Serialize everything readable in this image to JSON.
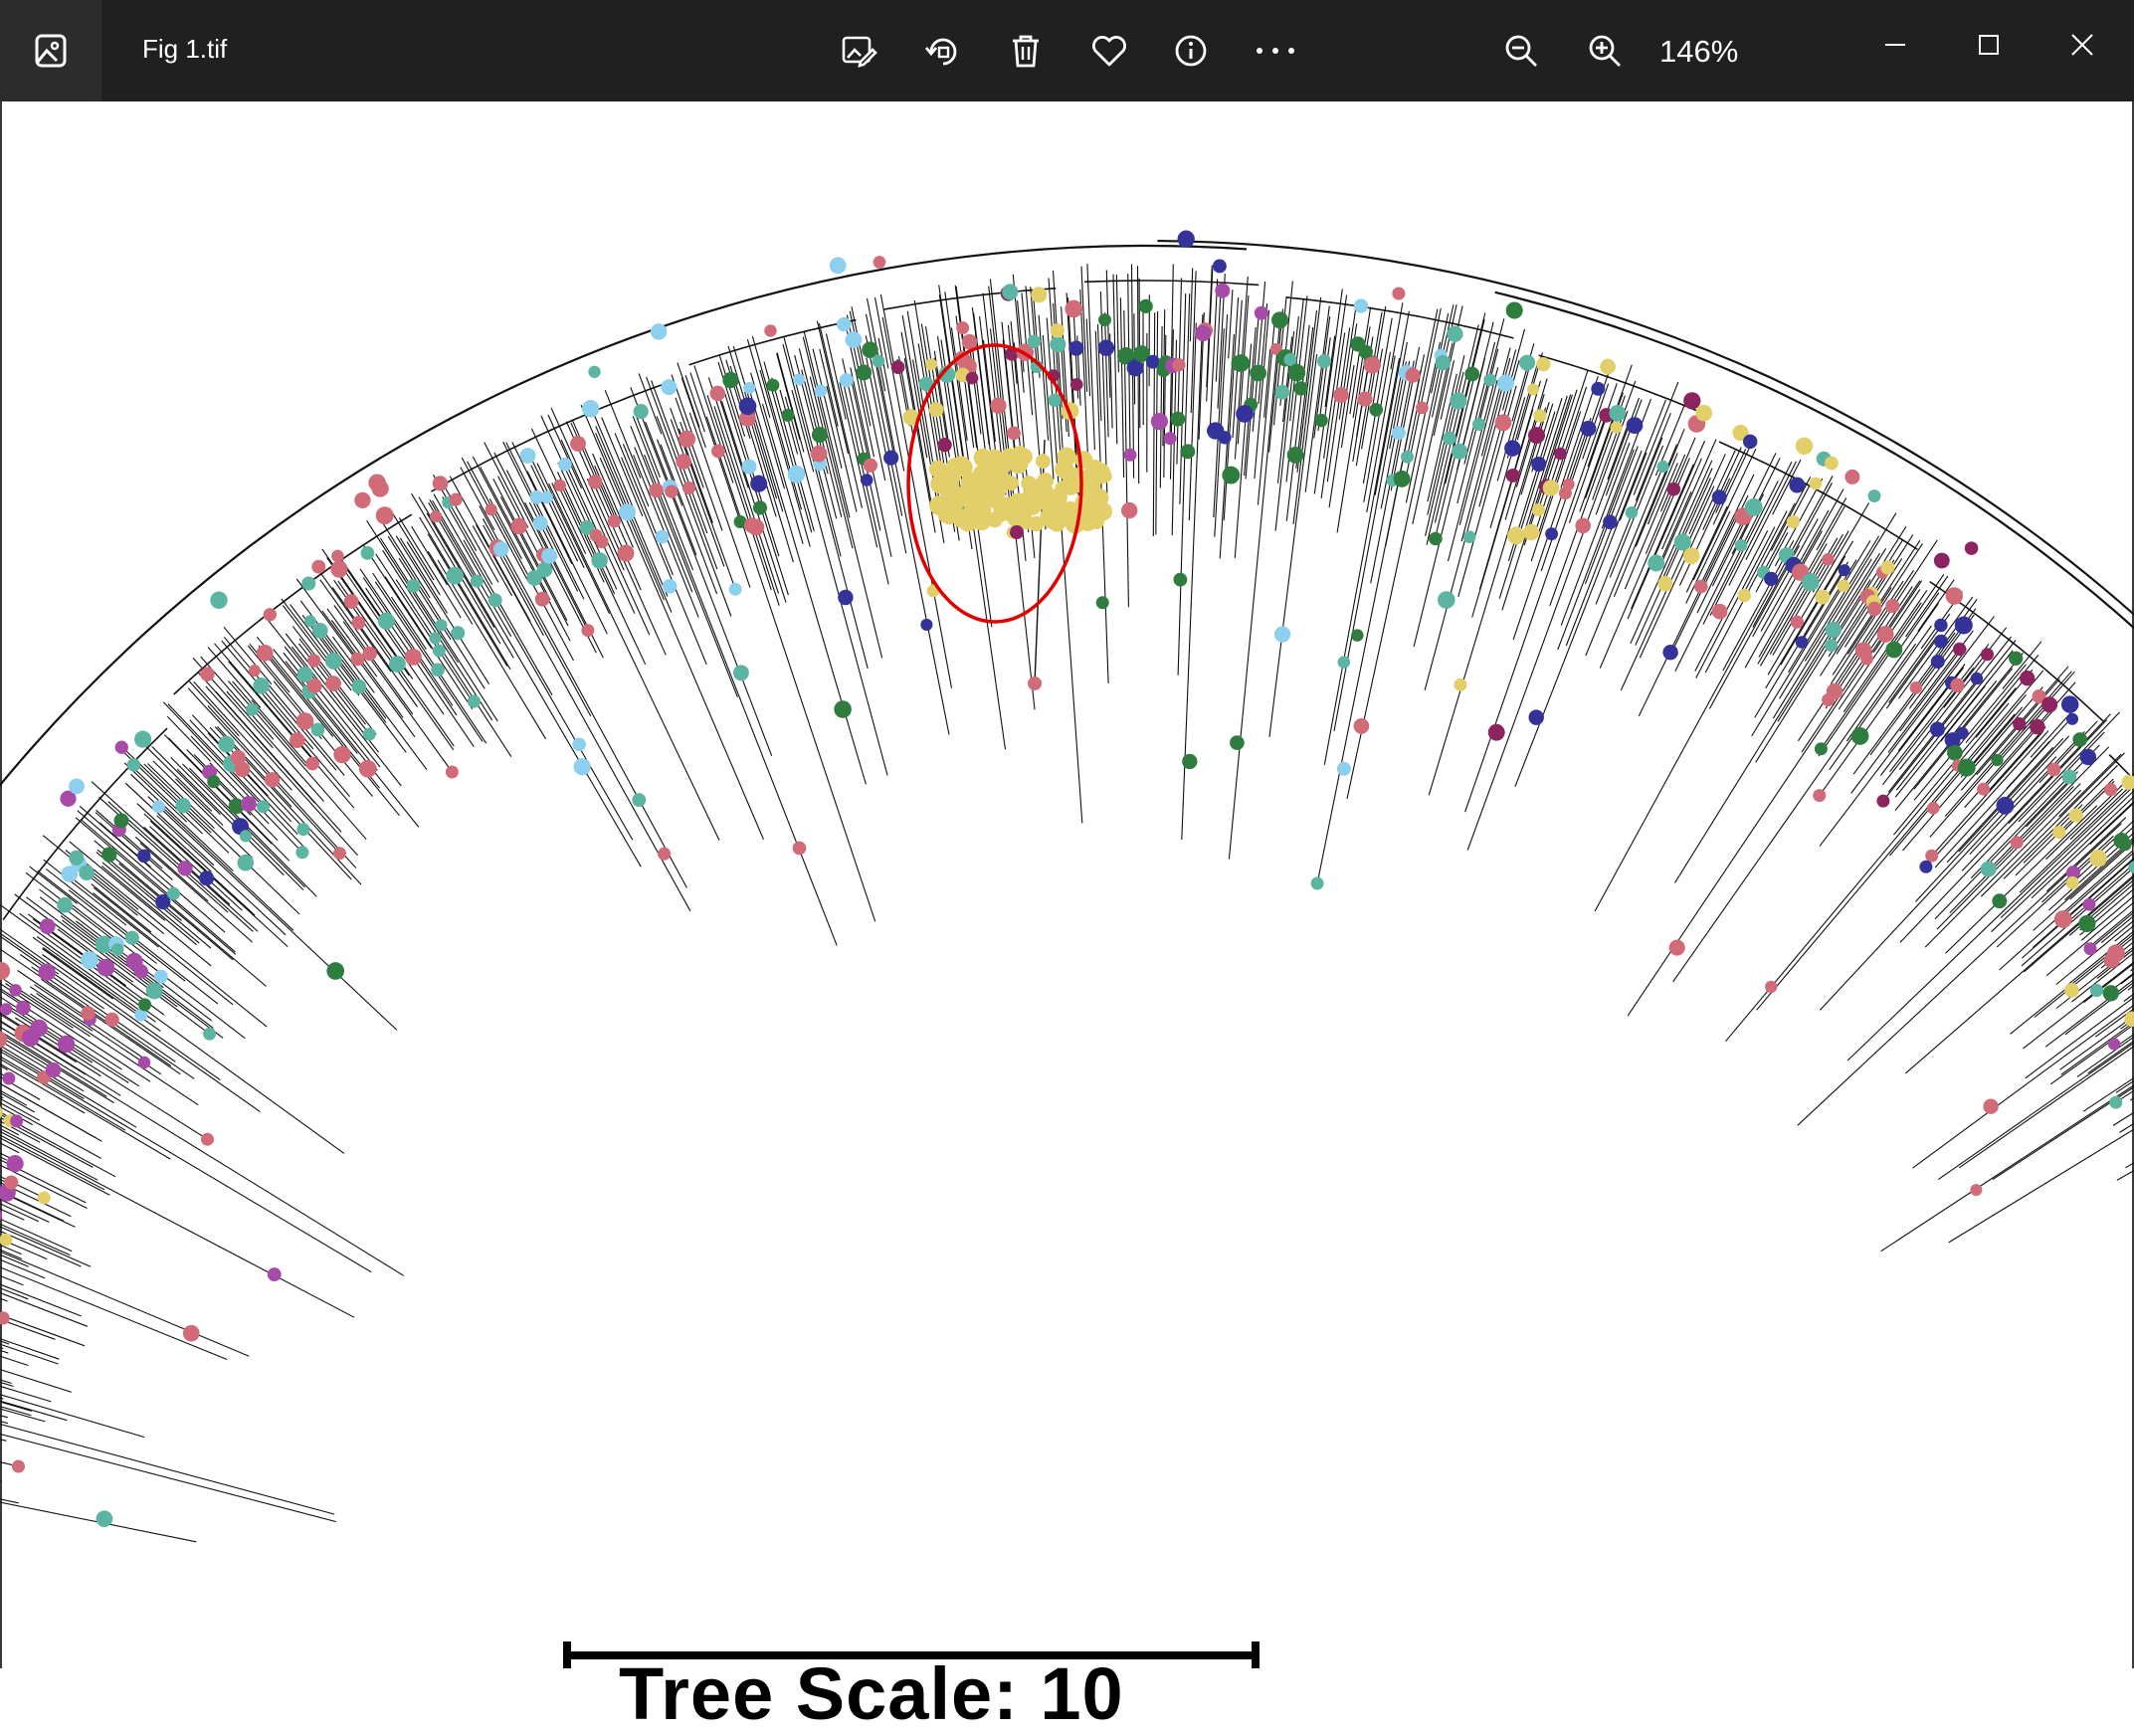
{
  "window": {
    "file_name": "Fig 1.tif",
    "zoom_level": "146%"
  },
  "toolbar": {
    "icons": [
      "edit-image-icon",
      "rotate-icon",
      "delete-icon",
      "favorite-icon",
      "info-icon",
      "more-icon",
      "zoom-out-icon",
      "zoom-in-icon"
    ]
  },
  "window_controls": [
    "minimize-icon",
    "maximize-icon",
    "close-icon"
  ],
  "figure": {
    "scale_label": "Tree Scale: 10",
    "annotation": "red-ellipse-highlight",
    "colors": {
      "green": "#2e7d3e",
      "teal": "#5bb5a2",
      "yellow": "#e2cf6a",
      "pink": "#d26b78",
      "purple": "#a84aa8",
      "navy": "#33339a",
      "plum": "#8c2460",
      "light_blue": "#8ccfee",
      "highlight": "#e00000",
      "branch": "#111111"
    }
  }
}
